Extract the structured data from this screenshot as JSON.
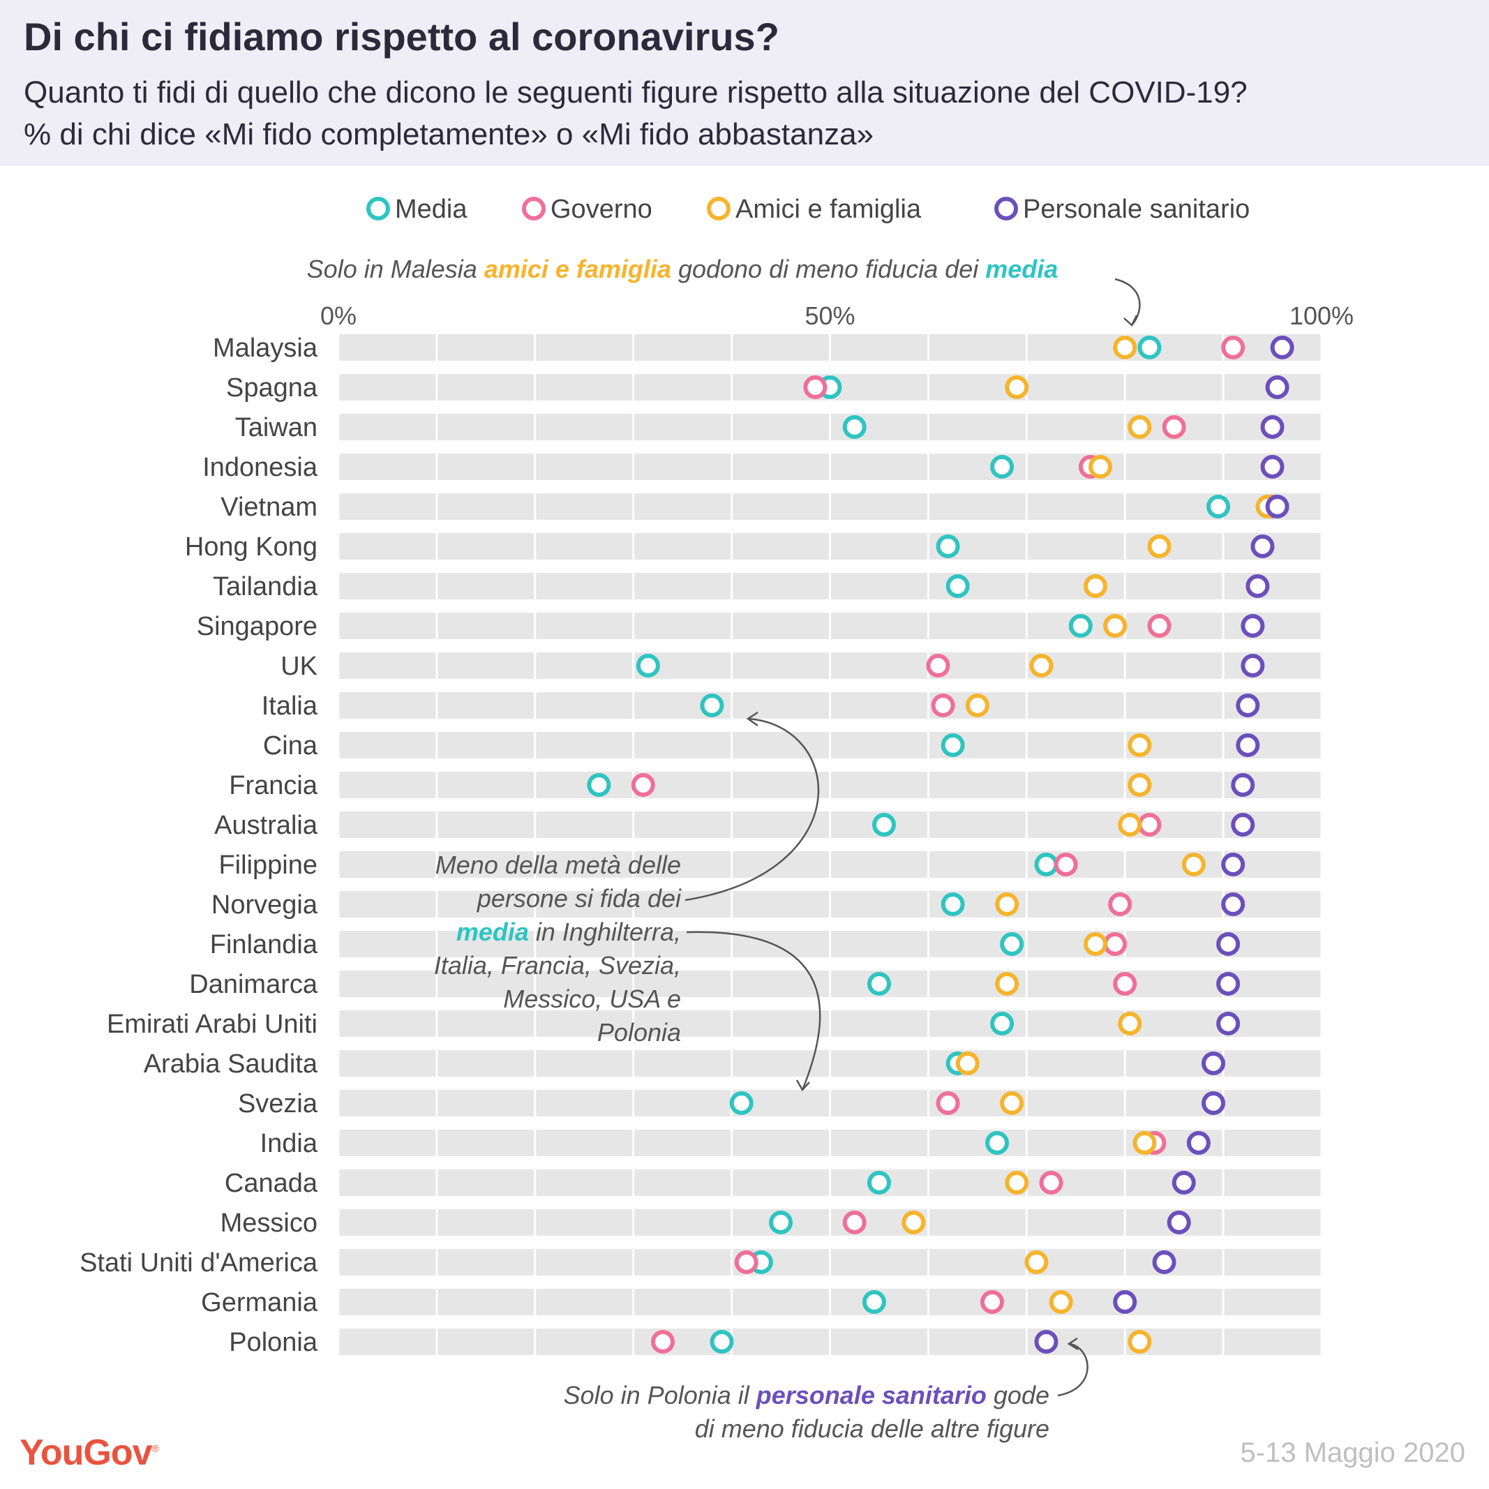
{
  "title": "Di chi ci fidiamo rispetto al coronavirus?",
  "subtitle_line1": "Quanto ti fidi di quello che dicono le seguenti figure rispetto alla situazione del COVID-19?",
  "subtitle_line2": "% di chi dice «Mi fido completamente» o «Mi fido abbastanza»",
  "brand": "YouGov",
  "date": "5-13 Maggio 2020",
  "annotations": {
    "malaysia": [
      "Solo in Malesia ",
      "amici e famiglia",
      " godono di meno fiducia dei ",
      "media"
    ],
    "media_lines": [
      "Meno della metà delle",
      "persone si fida dei",
      "media",
      " in Inghilterra,",
      "Italia, Francia, Svezia,",
      "Messico, USA e",
      "Polonia"
    ],
    "polonia_lines": [
      "Solo in Polonia il ",
      "personale sanitario",
      " gode",
      "di meno fiducia delle altre figure"
    ]
  },
  "chart_data": {
    "type": "dot",
    "xlim": [
      0,
      100
    ],
    "tick_labels": [
      "0%",
      "50%",
      "100%"
    ],
    "grid": true,
    "legend_position": "top-center",
    "categories": [
      "Malaysia",
      "Spagna",
      "Taiwan",
      "Indonesia",
      "Vietnam",
      "Hong Kong",
      "Tailandia",
      "Singapore",
      "UK",
      "Italia",
      "Cina",
      "Francia",
      "Australia",
      "Filippine",
      "Norvegia",
      "Finlandia",
      "Danimarca",
      "Emirati Arabi Uniti",
      "Arabia Saudita",
      "Svezia",
      "India",
      "Canada",
      "Messico",
      "Stati Uniti d'America",
      "Germania",
      "Polonia"
    ],
    "series": [
      {
        "name": "Media",
        "color": "#2ec4c1",
        "values": [
          82.5,
          50,
          52.5,
          67.5,
          89.5,
          62,
          63,
          75.5,
          31.5,
          38,
          62.5,
          26.5,
          55.5,
          72,
          62.5,
          68.5,
          55,
          67.5,
          63,
          41,
          67,
          55,
          45,
          43,
          54.5,
          39
        ]
      },
      {
        "name": "Governo",
        "color": "#ef6f99",
        "values": [
          91,
          48.5,
          85,
          76.5,
          95,
          null,
          null,
          83.5,
          61,
          61.5,
          null,
          31,
          82.5,
          74,
          79.5,
          79,
          80,
          null,
          null,
          62,
          83,
          72.5,
          52.5,
          41.5,
          66.5,
          33
        ]
      },
      {
        "name": "Amici e famiglia",
        "color": "#f6b42c",
        "values": [
          80,
          69,
          81.5,
          77.5,
          94.5,
          83.5,
          77,
          79,
          71.5,
          65,
          81.5,
          81.5,
          80.5,
          87,
          68,
          77,
          68,
          80.5,
          64,
          68.5,
          82,
          69,
          58.5,
          71,
          73.5,
          81.5
        ]
      },
      {
        "name": "Personale sanitario",
        "color": "#6b4fbb",
        "values": [
          96,
          95.5,
          95,
          95,
          95.5,
          94,
          93.5,
          93,
          93,
          92.5,
          92.5,
          92,
          92,
          91,
          91,
          90.5,
          90.5,
          90.5,
          89,
          89,
          87.5,
          86,
          85.5,
          84,
          80,
          72
        ]
      }
    ]
  }
}
